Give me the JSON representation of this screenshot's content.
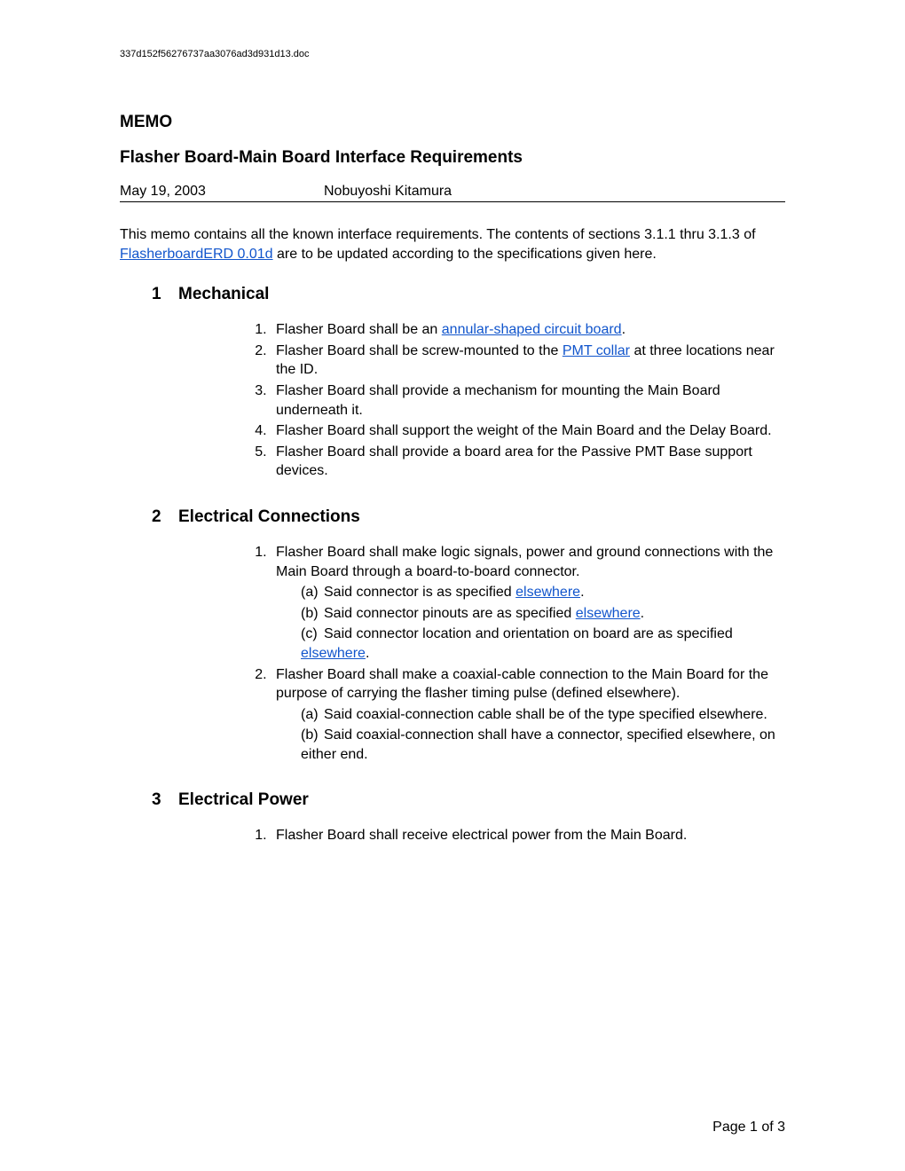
{
  "filename": "337d152f56276737aa3076ad3d931d13.doc",
  "memo_label": "MEMO",
  "title": "Flasher Board-Main Board Interface Requirements",
  "date": "May 19, 2003",
  "author": "Nobuyoshi Kitamura",
  "intro": {
    "pre": "This memo contains all the known interface requirements.  The contents of sections 3.1.1 thru 3.1.3 of ",
    "link": "FlasherboardERD 0.01d",
    "post": " are to be updated according to the specifications given here."
  },
  "sections": {
    "s1": {
      "num": "1",
      "title": "Mechanical",
      "items": {
        "i1": {
          "pre": "Flasher Board shall be an ",
          "link": "annular-shaped circuit board",
          "post": "."
        },
        "i2": {
          "pre": "Flasher Board shall be screw-mounted to the ",
          "link": "PMT collar",
          "post": " at three locations near the ID."
        },
        "i3": "Flasher Board shall provide a mechanism for mounting the Main Board underneath it.",
        "i4": "Flasher Board shall support the weight of the Main Board and the Delay Board.",
        "i5": "Flasher Board shall provide a board area for the Passive PMT Base support devices."
      }
    },
    "s2": {
      "num": "2",
      "title": "Electrical Connections",
      "items": {
        "i1": {
          "text": "Flasher Board shall make logic signals, power and ground connections with the Main Board through a board-to-board connector.",
          "sub": {
            "a": {
              "marker": "(a)",
              "pre": "Said connector is as specified ",
              "link": "elsewhere",
              "post": "."
            },
            "b": {
              "marker": "(b)",
              "pre": "Said connector pinouts are as specified ",
              "link": "elsewhere",
              "post": "."
            },
            "c": {
              "marker": "(c)",
              "pre": "Said connector location and orientation on board are as specified ",
              "link": "elsewhere",
              "post": "."
            }
          }
        },
        "i2": {
          "text": "Flasher Board shall make a coaxial-cable connection to the Main Board for the purpose of carrying the flasher timing pulse (defined elsewhere).",
          "sub": {
            "a": {
              "marker": "(a)",
              "text": "Said coaxial-connection cable shall be of the type specified elsewhere."
            },
            "b": {
              "marker": "(b)",
              "text": "Said coaxial-connection shall have a connector, specified elsewhere, on either end."
            }
          }
        }
      }
    },
    "s3": {
      "num": "3",
      "title": "Electrical Power",
      "items": {
        "i1": "Flasher Board shall receive electrical power from the Main Board."
      }
    }
  },
  "footer": "Page 1 of 3",
  "link_color": "#1155cc"
}
